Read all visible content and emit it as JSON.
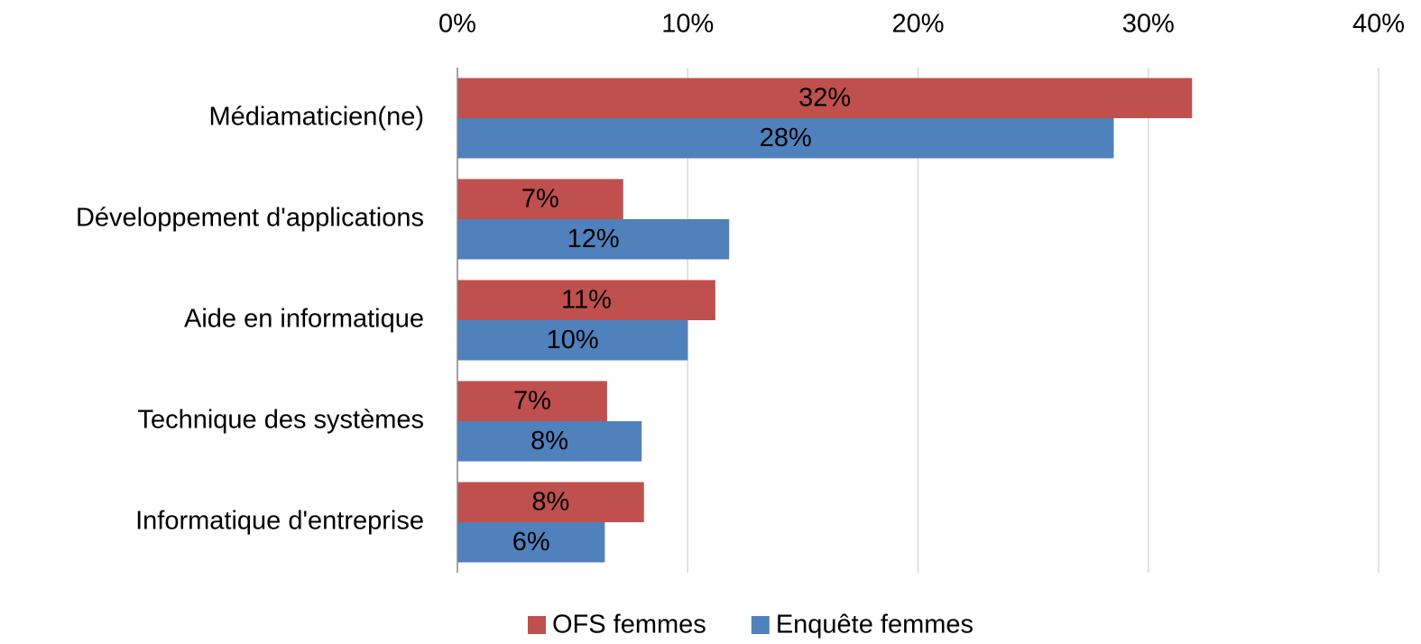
{
  "chart_data": {
    "type": "hbar",
    "categories": [
      "Médiamaticien(ne)",
      "Développement d'applications",
      "Aide en informatique",
      "Technique des systèmes",
      "Informatique d'entreprise"
    ],
    "series": [
      {
        "name": "OFS femmes",
        "color": "#c0504d",
        "values": [
          31.9,
          7.2,
          11.2,
          6.5,
          8.1
        ],
        "value_labels": [
          "32%",
          "7%",
          "11%",
          "7%",
          "8%"
        ]
      },
      {
        "name": "Enquête femmes",
        "color": "#4f81bd",
        "values": [
          28.5,
          11.8,
          10.0,
          8.0,
          6.4
        ],
        "value_labels": [
          "28%",
          "12%",
          "10%",
          "8%",
          "6%"
        ]
      }
    ],
    "xlim": [
      0,
      40
    ],
    "xticks": [
      {
        "value": 0,
        "label": "0%"
      },
      {
        "value": 10,
        "label": "10%"
      },
      {
        "value": 20,
        "label": "20%"
      },
      {
        "value": 30,
        "label": "30%"
      },
      {
        "value": 40,
        "label": "40%"
      }
    ],
    "grid": true,
    "legend": "bottom"
  }
}
